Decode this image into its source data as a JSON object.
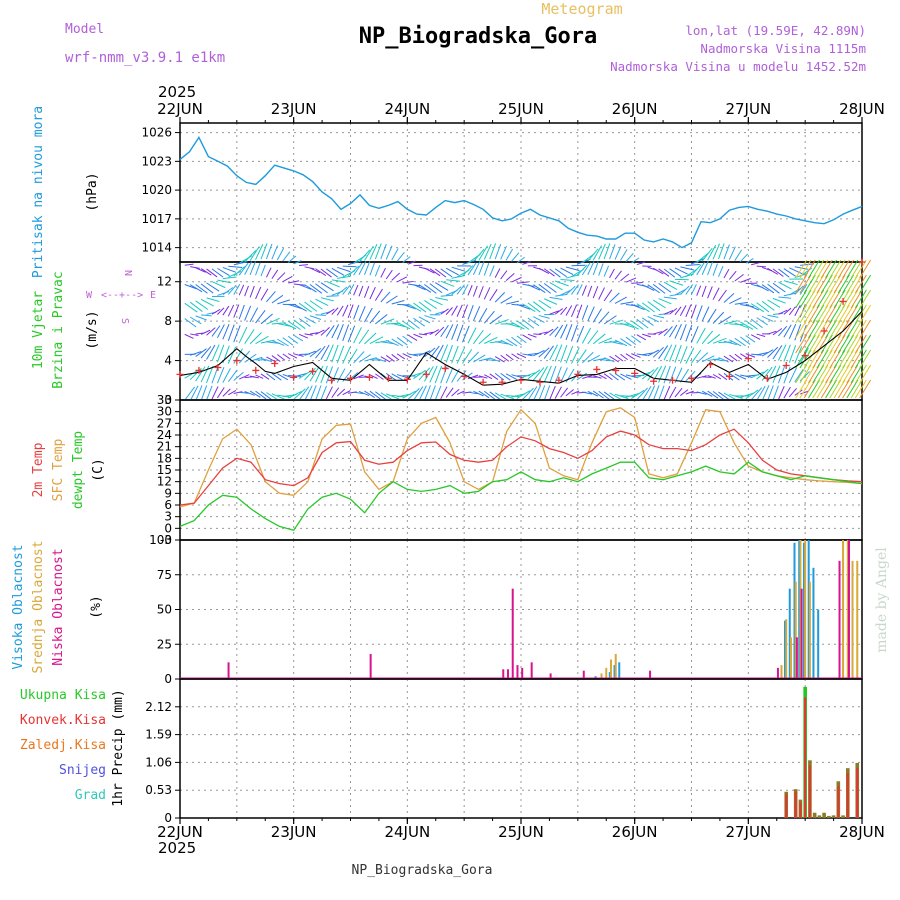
{
  "header": {
    "model_label": "Model",
    "model_name": "wrf-nmm_v3.9.1 e1km",
    "title": "NP_Biogradska_Gora",
    "subtitle": "Meteogram",
    "coords": "lon,lat (19.59E, 42.89N)",
    "altitude": "Nadmorska Visina 1115m",
    "model_altitude": "Nadmorska Visina u modelu 1452.52m",
    "watermark": "made by Angel",
    "footer": "NP_Biogradska_Gora"
  },
  "time_axis": {
    "year": "2025",
    "labels": [
      "22JUN",
      "23JUN",
      "24JUN",
      "25JUN",
      "26JUN",
      "27JUN",
      "28JUN"
    ]
  },
  "colors": {
    "pressure": "#1e9bdc",
    "wind_speed": "#000000",
    "wind_gust": "#e83232",
    "t2m": "#e84040",
    "sfc": "#e0a040",
    "dewpt": "#28c828",
    "cloud_high": "#1e9bdc",
    "cloud_mid": "#d8a838",
    "cloud_low": "#d8148c",
    "precip_total": "#20c820",
    "precip_conv": "#e83232",
    "precip_graupel": "#e87820",
    "precip_snow": "#5050e0",
    "precip_hail": "#30c8b8"
  },
  "chart_data": [
    {
      "type": "line",
      "panel": "pressure",
      "ylabel": "Pritisak na nivou mora",
      "unit": "(hPa)",
      "ylim": [
        1012.5,
        1027
      ],
      "yticks": [
        "1014",
        "1017",
        "1020",
        "1023",
        "1026"
      ],
      "grid": true,
      "series": [
        {
          "name": "Pritisak na nivou mora",
          "x": [
            0,
            2,
            4,
            6,
            8,
            10,
            12,
            14,
            16,
            18,
            20,
            22,
            24,
            26,
            28,
            30,
            32,
            34,
            36,
            38,
            40,
            42,
            44,
            46,
            48,
            50,
            52,
            54,
            56,
            58,
            60,
            62,
            64,
            66,
            68,
            70,
            72,
            74,
            76,
            78,
            80,
            82,
            84,
            86,
            88,
            90,
            92,
            94,
            96,
            98,
            100,
            102,
            104,
            106,
            108,
            110,
            112,
            114,
            116,
            118,
            120,
            122,
            124,
            126,
            128,
            130,
            132,
            134,
            136,
            138,
            140,
            142,
            143,
            144
          ],
          "values": [
            1023.2,
            1024.0,
            1025.5,
            1023.5,
            1023.0,
            1022.5,
            1021.5,
            1020.8,
            1020.6,
            1021.5,
            1022.6,
            1022.3,
            1022.0,
            1021.6,
            1020.9,
            1019.8,
            1019.1,
            1018.0,
            1018.6,
            1019.5,
            1018.4,
            1018.1,
            1018.4,
            1018.8,
            1018.0,
            1017.5,
            1017.4,
            1018.2,
            1018.9,
            1018.7,
            1018.9,
            1018.5,
            1018.0,
            1017.1,
            1016.8,
            1017.0,
            1017.6,
            1018.0,
            1017.4,
            1017.1,
            1016.8,
            1016.0,
            1015.6,
            1015.3,
            1015.2,
            1014.9,
            1014.9,
            1015.5,
            1015.5,
            1014.8,
            1014.6,
            1014.9,
            1014.6,
            1014.0,
            1014.5,
            1016.7,
            1016.6,
            1017.0,
            1017.9,
            1018.2,
            1018.3,
            1018.0,
            1017.8,
            1017.5,
            1017.3,
            1017.0,
            1016.8,
            1016.6,
            1016.5,
            1016.9,
            1017.5,
            1017.9,
            1018.1,
            1018.3
          ]
        }
      ]
    },
    {
      "type": "line",
      "panel": "wind",
      "ylabel": "10m Vjetar Brzina i Pravac",
      "unit": "(m/s)",
      "ylim": [
        0,
        14
      ],
      "yticks": [
        "0",
        "4",
        "8",
        "12"
      ],
      "compass": {
        "n": "N",
        "s": "S",
        "e": "E",
        "w": "W"
      },
      "grid": true,
      "series": [
        {
          "name": "speed",
          "x": [
            0,
            4,
            8,
            12,
            14,
            16,
            18,
            20,
            24,
            28,
            32,
            36,
            40,
            44,
            48,
            52,
            56,
            60,
            64,
            68,
            72,
            76,
            80,
            84,
            88,
            92,
            96,
            100,
            104,
            108,
            112,
            116,
            120,
            124,
            128,
            132,
            136,
            140,
            144
          ],
          "values": [
            2.5,
            2.8,
            3.5,
            5.2,
            4.4,
            3.7,
            2.9,
            2.7,
            3.4,
            3.8,
            2.2,
            2.0,
            3.6,
            2.0,
            2.0,
            4.8,
            3.6,
            2.6,
            1.5,
            1.6,
            2.1,
            1.9,
            1.7,
            2.5,
            2.6,
            3.2,
            3.2,
            2.2,
            2.0,
            1.8,
            3.8,
            2.8,
            3.6,
            2.1,
            2.8,
            4.0,
            5.5,
            7.0,
            9.0
          ]
        },
        {
          "name": "gust",
          "x": [
            0,
            4,
            8,
            12,
            16,
            20,
            24,
            28,
            32,
            36,
            40,
            44,
            48,
            52,
            56,
            60,
            64,
            68,
            72,
            76,
            80,
            84,
            88,
            92,
            96,
            100,
            104,
            108,
            112,
            116,
            120,
            124,
            128,
            132,
            136,
            140,
            144
          ],
          "values": [
            2.6,
            3.0,
            3.3,
            4.0,
            3.0,
            3.7,
            2.3,
            2.9,
            2.0,
            2.2,
            2.3,
            2.2,
            2.1,
            2.6,
            3.2,
            2.4,
            1.8,
            1.8,
            2.0,
            1.8,
            2.0,
            2.6,
            3.1,
            3.0,
            2.7,
            1.9,
            2.0,
            2.2,
            3.6,
            2.4,
            4.2,
            2.2,
            3.5,
            4.5,
            7.0,
            10.0,
            14.0
          ]
        }
      ]
    },
    {
      "type": "line",
      "panel": "temperature",
      "labels": [
        "2m Temp",
        "SFC Temp",
        "dewpt Temp"
      ],
      "unit": "(C)",
      "ylim": [
        -3,
        33
      ],
      "yticks": [
        "-3",
        "0",
        "3",
        "6",
        "9",
        "12",
        "15",
        "18",
        "21",
        "24",
        "27",
        "30",
        "33"
      ],
      "grid": true,
      "series": [
        {
          "name": "2m Temp",
          "x": [
            0,
            3,
            6,
            9,
            12,
            15,
            18,
            21,
            24,
            27,
            30,
            33,
            36,
            39,
            42,
            45,
            48,
            51,
            54,
            57,
            60,
            63,
            66,
            69,
            72,
            75,
            78,
            81,
            84,
            87,
            90,
            93,
            96,
            99,
            102,
            105,
            108,
            111,
            114,
            117,
            120,
            123,
            126,
            129,
            132,
            135,
            138,
            141,
            144
          ],
          "values": [
            6.0,
            6.5,
            11.0,
            15.5,
            18.0,
            17.0,
            12.5,
            11.5,
            11.0,
            13.0,
            19.5,
            22.0,
            22.3,
            17.5,
            16.5,
            17.0,
            20.0,
            22.0,
            22.2,
            19.0,
            17.5,
            17.0,
            17.5,
            21.0,
            23.5,
            22.5,
            20.5,
            19.5,
            18.0,
            20.0,
            23.5,
            25.0,
            24.0,
            21.5,
            20.5,
            20.5,
            20.0,
            21.5,
            24.0,
            25.5,
            22.0,
            17.5,
            15.0,
            14.0,
            13.5,
            13.0,
            12.5,
            12.2,
            12.0
          ]
        },
        {
          "name": "SFC Temp",
          "x": [
            0,
            3,
            6,
            9,
            12,
            15,
            18,
            21,
            24,
            27,
            30,
            33,
            36,
            39,
            42,
            45,
            48,
            51,
            54,
            57,
            60,
            63,
            66,
            69,
            72,
            75,
            78,
            81,
            84,
            87,
            90,
            93,
            96,
            99,
            102,
            105,
            108,
            111,
            114,
            117,
            120,
            123,
            126,
            129,
            132,
            135,
            138,
            141,
            144
          ],
          "values": [
            5.5,
            6.5,
            15.0,
            23.0,
            25.5,
            21.5,
            12.0,
            9.0,
            8.5,
            12.0,
            23.0,
            26.5,
            26.8,
            14.5,
            10.0,
            12.0,
            23.0,
            27.0,
            28.5,
            22.0,
            12.0,
            10.0,
            12.0,
            25.0,
            30.5,
            27.0,
            15.5,
            13.5,
            12.5,
            22.0,
            30.0,
            31.0,
            28.5,
            14.0,
            13.0,
            14.0,
            22.0,
            30.5,
            30.0,
            22.0,
            16.0,
            14.5,
            13.5,
            13.0,
            12.5,
            12.2,
            12.0,
            11.8,
            11.5
          ]
        },
        {
          "name": "dewpt Temp",
          "x": [
            0,
            3,
            6,
            9,
            12,
            15,
            18,
            21,
            24,
            27,
            30,
            33,
            36,
            39,
            42,
            45,
            48,
            51,
            54,
            57,
            60,
            63,
            66,
            69,
            72,
            75,
            78,
            81,
            84,
            87,
            90,
            93,
            96,
            99,
            102,
            105,
            108,
            111,
            114,
            117,
            120,
            123,
            126,
            129,
            132,
            135,
            138,
            141,
            144
          ],
          "values": [
            0.5,
            2.0,
            6.0,
            8.5,
            8.0,
            5.0,
            2.5,
            0.5,
            -0.5,
            5.0,
            8.0,
            9.0,
            7.5,
            4.0,
            9.0,
            12.0,
            10.0,
            9.5,
            10.0,
            11.0,
            9.0,
            9.5,
            12.0,
            12.5,
            14.5,
            12.5,
            12.0,
            13.0,
            12.0,
            14.0,
            15.5,
            17.0,
            17.0,
            13.0,
            12.5,
            13.5,
            14.5,
            16.0,
            14.5,
            14.0,
            17.0,
            14.5,
            13.5,
            12.5,
            13.5,
            13.0,
            12.5,
            12.0,
            11.5
          ]
        }
      ]
    },
    {
      "type": "bar",
      "panel": "clouds",
      "labels": [
        "Visoka Oblacnost",
        "Srednja Oblacnost",
        "Niska Oblacnost"
      ],
      "unit": "(%)",
      "ylim": [
        0,
        100
      ],
      "yticks": [
        "0",
        "25",
        "50",
        "75",
        "100"
      ],
      "grid": true,
      "series": [
        {
          "name": "Visoka Oblacnost",
          "x": [
            88,
            91,
            92,
            93,
            128,
            129,
            130,
            131,
            132,
            133,
            134,
            135
          ],
          "values": [
            2,
            5,
            10,
            12,
            42,
            65,
            98,
            100,
            98,
            100,
            80,
            50
          ]
        },
        {
          "name": "Srednja Oblacnost",
          "x": [
            89,
            90,
            91,
            92,
            127,
            128,
            129,
            130,
            131,
            132,
            133,
            140,
            141,
            142,
            143
          ],
          "values": [
            4,
            8,
            14,
            18,
            10,
            43,
            30,
            70,
            100,
            100,
            70,
            100,
            100,
            85,
            85
          ]
        },
        {
          "name": "Niska Oblacnost",
          "x": [
            10,
            40,
            68,
            69,
            70,
            71,
            72,
            74,
            78,
            85,
            99,
            126,
            130,
            131,
            139,
            141
          ],
          "values": [
            12,
            18,
            7,
            7,
            65,
            10,
            8,
            12,
            4,
            6,
            6,
            8,
            30,
            65,
            85,
            100
          ]
        }
      ]
    },
    {
      "type": "bar",
      "panel": "precip",
      "labels": [
        "Ukupna Kisa",
        "Konvek.Kisa",
        "Zaledj.Kisa",
        "Snijeg",
        "Grad"
      ],
      "unit": "1hr Precip (mm)",
      "ylim": [
        0,
        2.65
      ],
      "yticks": [
        "0",
        "0.53",
        "1.06",
        "1.59",
        "2.12"
      ],
      "grid": true,
      "series": [
        {
          "name": "Ukupna Kisa",
          "x": [
            128,
            130,
            131,
            132,
            133,
            134,
            135,
            136,
            137,
            138,
            139,
            140,
            141,
            142,
            143
          ],
          "values": [
            0.5,
            0.55,
            0.35,
            2.5,
            1.1,
            0.1,
            0.05,
            0.1,
            0.04,
            0.05,
            0.7,
            0.05,
            0.95,
            0.0,
            1.05
          ]
        },
        {
          "name": "Konvek.Kisa",
          "x": [
            128,
            130,
            131,
            132,
            133,
            139,
            141,
            143
          ],
          "values": [
            0.45,
            0.5,
            0.3,
            2.3,
            1.0,
            0.6,
            0.85,
            0.95
          ]
        },
        {
          "name": "Zaledj.Kisa",
          "x": [],
          "values": []
        },
        {
          "name": "Snijeg",
          "x": [],
          "values": []
        },
        {
          "name": "Grad",
          "x": [],
          "values": []
        }
      ]
    }
  ]
}
